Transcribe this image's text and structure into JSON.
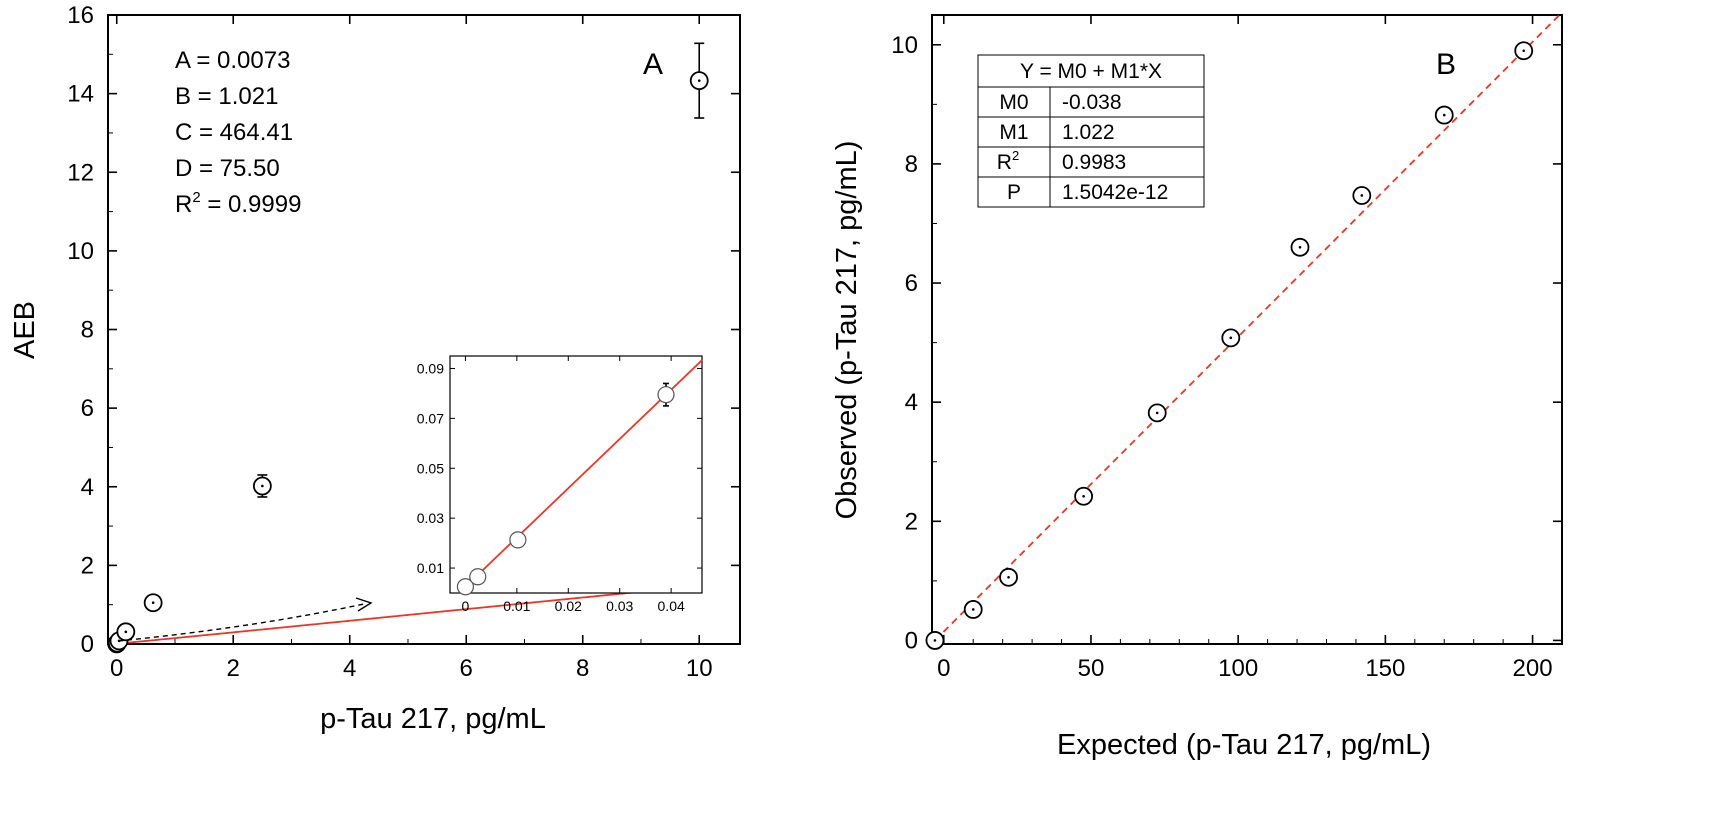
{
  "chart_data": [
    {
      "type": "scatter",
      "panel_label": "A",
      "title": "",
      "xlabel": "p-Tau 217, pg/mL",
      "ylabel": "AEB",
      "xlim": [
        -0.15,
        10.7
      ],
      "ylim": [
        0,
        16
      ],
      "xticks": [
        0,
        2,
        4,
        6,
        8,
        10
      ],
      "yticks": [
        0,
        2,
        4,
        6,
        8,
        10,
        12,
        14,
        16
      ],
      "grid": false,
      "fit": {
        "model": "4PL",
        "A": 0.0073,
        "B": 1.021,
        "C": 464.41,
        "D": 75.5
      },
      "params_lines": [
        "A = 0.0073",
        "B = 1.021",
        "C = 464.41",
        "D = 75.50"
      ],
      "r2_prefix": "R",
      "r2_sup": "2",
      "r2_suffix": " = 0.9999",
      "points": [
        {
          "x": 0,
          "y": 0.003,
          "err": 0
        },
        {
          "x": 0.002,
          "y": 0.008,
          "err": 0
        },
        {
          "x": 0.01,
          "y": 0.021,
          "err": 0
        },
        {
          "x": 0.039,
          "y": 0.08,
          "err": 0
        },
        {
          "x": 0.156,
          "y": 0.31,
          "err": 0
        },
        {
          "x": 0.625,
          "y": 1.05,
          "err": 0
        },
        {
          "x": 2.5,
          "y": 4.02,
          "err": 0.28
        },
        {
          "x": 10,
          "y": 14.33,
          "err": 0.95
        }
      ],
      "inset": {
        "xlim": [
          -0.003,
          0.046
        ],
        "ylim": [
          0.0,
          0.095
        ],
        "xticks": [
          0,
          0.01,
          0.02,
          0.03,
          0.04
        ],
        "xtick_labels": [
          "0",
          "0.01",
          "0.02",
          "0.03",
          "0.04"
        ],
        "yticks": [
          0.01,
          0.03,
          0.05,
          0.07,
          0.09
        ],
        "ytick_labels": [
          "0.01",
          "0.03",
          "0.05",
          "0.07",
          "0.09"
        ],
        "points": [
          {
            "x": 0,
            "y": 0.0025,
            "err": 0
          },
          {
            "x": 0.0024,
            "y": 0.0065,
            "err": 0
          },
          {
            "x": 0.0102,
            "y": 0.0213,
            "err": 0
          },
          {
            "x": 0.039,
            "y": 0.0795,
            "err": 0.0045
          }
        ]
      }
    },
    {
      "type": "scatter",
      "panel_label": "B",
      "title": "",
      "xlabel": "Expected (p-Tau 217, pg/mL)",
      "ylabel": "Observed (p-Tau 217, pg/mL)",
      "xlim": [
        -4,
        210
      ],
      "ylim": [
        -0.06,
        10.5
      ],
      "xticks": [
        0,
        50,
        100,
        150,
        200
      ],
      "yticks": [
        0,
        2,
        4,
        6,
        8,
        10
      ],
      "grid": false,
      "fit": {
        "model": "linear",
        "M0": -0.038,
        "M1": 1.022
      },
      "table": {
        "header": "Y = M0 + M1*X",
        "rows": [
          {
            "key": "M0",
            "key_sup": "",
            "value": "-0.038"
          },
          {
            "key": "M1",
            "key_sup": "",
            "value": "1.022"
          },
          {
            "key": "R",
            "key_sup": "2",
            "value": "0.9983"
          },
          {
            "key": "P",
            "key_sup": "",
            "value": "1.5042e-12"
          }
        ]
      },
      "points": [
        {
          "x": -3,
          "y": 0.0
        },
        {
          "x": 10,
          "y": 0.52
        },
        {
          "x": 22,
          "y": 1.06
        },
        {
          "x": 47.5,
          "y": 2.42
        },
        {
          "x": 72.5,
          "y": 3.82
        },
        {
          "x": 97.5,
          "y": 5.08
        },
        {
          "x": 121,
          "y": 6.6
        },
        {
          "x": 142,
          "y": 7.47
        },
        {
          "x": 170,
          "y": 8.82
        },
        {
          "x": 197,
          "y": 9.9
        }
      ]
    }
  ]
}
